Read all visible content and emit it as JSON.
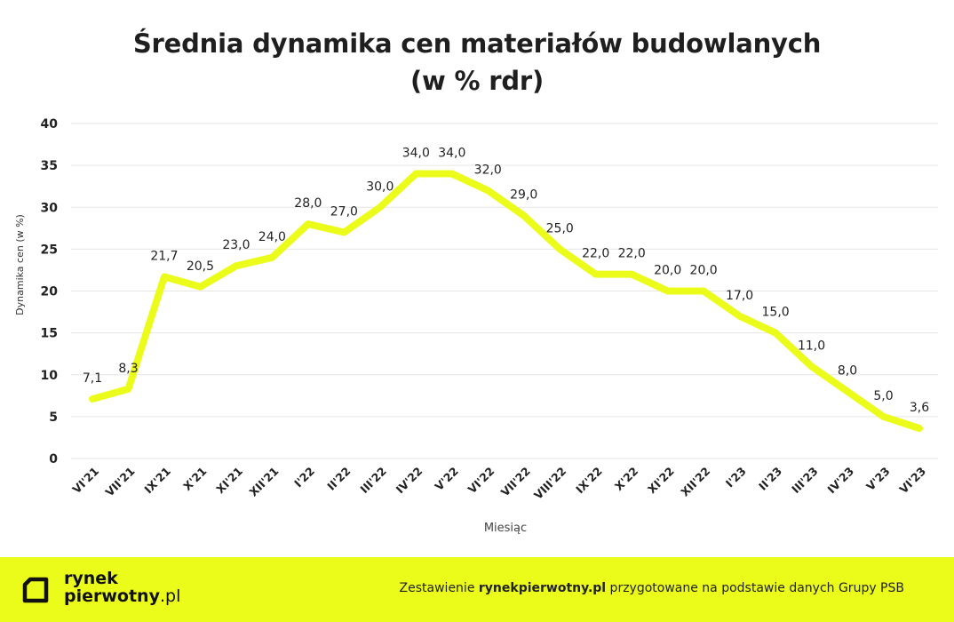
{
  "chart_data": {
    "type": "line",
    "title_line1": "Średnia dynamika cen materiałów budowlanych",
    "title_line2": "(w % rdr)",
    "xlabel": "Miesiąc",
    "ylabel": "Dynamika cen (w %)",
    "ylim": [
      0,
      40
    ],
    "yticks": [
      "0",
      "5",
      "10",
      "15",
      "20",
      "25",
      "30",
      "35",
      "40"
    ],
    "grid": true,
    "line_color": "#ecfc1a",
    "categories": [
      "VI'21",
      "VII'21",
      "IX'21",
      "X'21",
      "XI'21",
      "XII'21",
      "I'22",
      "II'22",
      "III'22",
      "IV'22",
      "V'22",
      "VI'22",
      "VII'22",
      "VIII'22",
      "IX'22",
      "X'22",
      "XI'22",
      "XII'22",
      "I'23",
      "II'23",
      "III'23",
      "IV'23",
      "V'23",
      "VI'23"
    ],
    "values": [
      7.1,
      8.3,
      21.7,
      20.5,
      23.0,
      24.0,
      28.0,
      27.0,
      30.0,
      34.0,
      34.0,
      32.0,
      29.0,
      25.0,
      22.0,
      22.0,
      20.0,
      20.0,
      17.0,
      15.0,
      11.0,
      8.0,
      5.0,
      3.6
    ],
    "value_labels": [
      "7,1",
      "8,3",
      "21,7",
      "20,5",
      "23,0",
      "24,0",
      "28,0",
      "27,0",
      "30,0",
      "34,0",
      "34,0",
      "32,0",
      "29,0",
      "25,0",
      "22,0",
      "22,0",
      "20,0",
      "20,0",
      "17,0",
      "15,0",
      "11,0",
      "8,0",
      "5,0",
      "3,6"
    ]
  },
  "footer": {
    "logo_line1": "rynek",
    "logo_line2_bold": "pierwotny",
    "logo_line2_rest": ".pl",
    "credit_prefix": "Zestawienie ",
    "credit_bold": "rynekpierwotny.pl",
    "credit_suffix": " przygotowane na podstawie danych Grupy PSB",
    "accent": "#ecfc1a"
  }
}
